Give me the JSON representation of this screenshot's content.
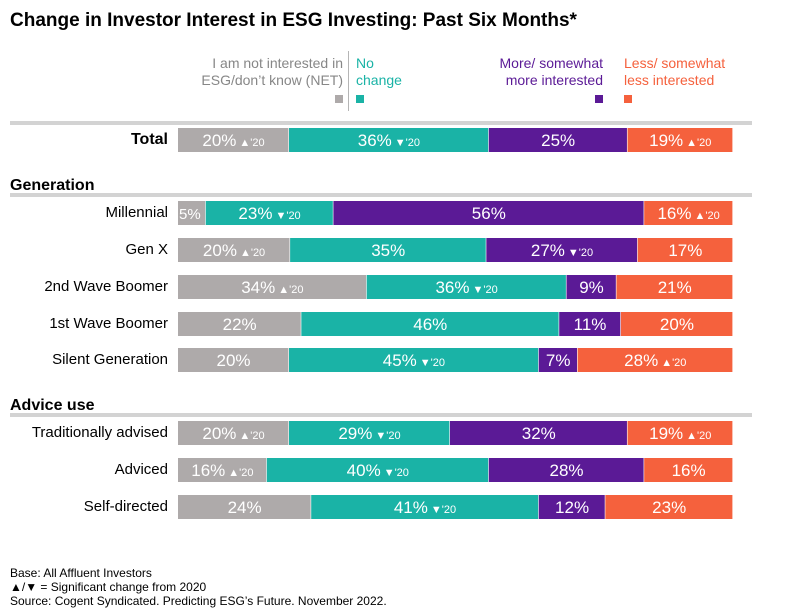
{
  "title": "Change in Investor Interest in ESG Investing: Past Six Months*",
  "legend": [
    {
      "name": "I am not interested in ESG/don't know (NET)",
      "lines": [
        "I am not interested in",
        "ESG/don’t know (NET)"
      ],
      "color": "#aeaaaa",
      "text_color": "#878787"
    },
    {
      "name": "No change",
      "lines": [
        "No",
        "change"
      ],
      "color": "#1ab3a6",
      "text_color": "#1ab3a6"
    },
    {
      "name": "More/ somewhat more interested",
      "lines": [
        "More/ somewhat",
        "more interested"
      ],
      "color": "#5b1a96",
      "text_color": "#5b1a96"
    },
    {
      "name": "Less/ somewhat less interested",
      "lines": [
        "Less/ somewhat",
        "less interested"
      ],
      "color": "#f5613d",
      "text_color": "#f5613d"
    }
  ],
  "sections": [
    {
      "header": ""
    },
    {
      "header": "Generation"
    },
    {
      "header": "Advice use"
    }
  ],
  "chart_data": {
    "type": "bar",
    "orientation": "horizontal",
    "stacked": true,
    "normalized_100": true,
    "categories": [
      "Total",
      "Millennial",
      "Gen X",
      "2nd Wave Boomer",
      "1st Wave Boomer",
      "Silent Generation",
      "Traditionally advised",
      "Adviced",
      "Self-directed"
    ],
    "category_sections": [
      0,
      1,
      1,
      1,
      1,
      1,
      2,
      2,
      2
    ],
    "series": [
      {
        "name": "I am not interested in ESG/don't know (NET)",
        "color": "#aeaaaa",
        "values": [
          20,
          5,
          20,
          34,
          22,
          20,
          20,
          16,
          24
        ],
        "change_2020": [
          "up",
          "",
          "up",
          "up",
          "",
          "",
          "up",
          "up",
          ""
        ]
      },
      {
        "name": "No change",
        "color": "#1ab3a6",
        "values": [
          36,
          23,
          35,
          36,
          46,
          45,
          29,
          40,
          41
        ],
        "change_2020": [
          "down",
          "down",
          "",
          "down",
          "",
          "down",
          "down",
          "down",
          "down"
        ]
      },
      {
        "name": "More/ somewhat more interested",
        "color": "#5b1a96",
        "values": [
          25,
          56,
          27,
          9,
          11,
          7,
          32,
          28,
          12
        ],
        "change_2020": [
          "",
          "",
          "down",
          "",
          "",
          "",
          "",
          "",
          ""
        ]
      },
      {
        "name": "Less/ somewhat less interested",
        "color": "#f5613d",
        "values": [
          19,
          16,
          17,
          21,
          20,
          28,
          19,
          16,
          23
        ],
        "change_2020": [
          "up",
          "up",
          "",
          "",
          "",
          "up",
          "up",
          "",
          ""
        ]
      }
    ],
    "value_suffix": "%",
    "change_marker_label": "'20",
    "xlim": [
      0,
      100
    ]
  },
  "notes": [
    "Base: All Affluent Investors",
    "▲/▼ = Significant change from 2020",
    "Source: Cogent Syndicated. Predicting ESG’s Future. November 2022."
  ]
}
